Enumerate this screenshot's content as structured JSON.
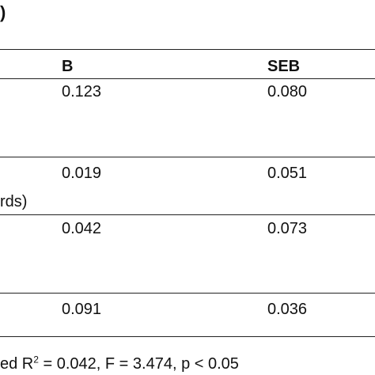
{
  "header": {
    "title": ")"
  },
  "table": {
    "columns": [
      "B",
      "SEB"
    ],
    "rows": [
      {
        "values": [
          "0.123",
          "0.080"
        ]
      },
      {
        "label": "rds)",
        "values": [
          "0.019",
          "0.051"
        ]
      },
      {
        "values": [
          "0.042",
          "0.073"
        ]
      },
      {
        "values": [
          "0.091",
          "0.036"
        ]
      }
    ]
  },
  "footer": {
    "prefix": "ed R",
    "superscript": "2",
    "suffix": " = 0.042, F = 3.474, p < 0.05"
  }
}
